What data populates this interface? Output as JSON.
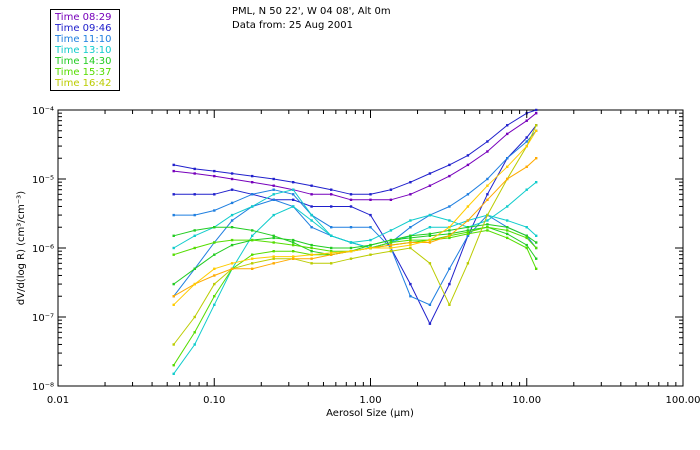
{
  "header": {
    "station": "PML, N 50 22', W 04 08', Alt 0m",
    "date_line": "Data from: 25 Aug 2001"
  },
  "legend": [
    {
      "label": "Time 08:29",
      "color": "#7700bb"
    },
    {
      "label": "Time 09:46",
      "color": "#2020cc"
    },
    {
      "label": "Time 11:10",
      "color": "#1f7fe0"
    },
    {
      "label": "Time 13:10",
      "color": "#11cccc"
    },
    {
      "label": "Time 14:30",
      "color": "#22cc22"
    },
    {
      "label": "Time 15:37",
      "color": "#55dd00"
    },
    {
      "label": "Time 16:42",
      "color": "#bbcc00"
    }
  ],
  "chart_data": {
    "type": "line",
    "title": "",
    "xlabel": "Aerosol Size (μm)",
    "ylabel": "dV/d(log R) (cm³/cm⁻³)",
    "xscale": "log",
    "yscale": "log",
    "xlim": [
      0.01,
      100
    ],
    "ylim": [
      1e-08,
      0.0001
    ],
    "xticks": [
      {
        "value": 0.01,
        "label": "0.01"
      },
      {
        "value": 0.1,
        "label": "0.10"
      },
      {
        "value": 1,
        "label": "1.00"
      },
      {
        "value": 10,
        "label": "10.00"
      },
      {
        "value": 100,
        "label": "100.00"
      }
    ],
    "yticks": [
      {
        "value": 1e-08,
        "label": "10⁻⁸"
      },
      {
        "value": 1e-07,
        "label": "10⁻⁷"
      },
      {
        "value": 1e-06,
        "label": "10⁻⁶"
      },
      {
        "value": 1e-05,
        "label": "10⁻⁵"
      },
      {
        "value": 0.0001,
        "label": "10⁻⁴"
      }
    ],
    "grid": false,
    "legend_position": "top-left, above plot",
    "x": [
      0.055,
      0.075,
      0.1,
      0.13,
      0.175,
      0.24,
      0.32,
      0.42,
      0.56,
      0.75,
      1.0,
      1.35,
      1.8,
      2.4,
      3.2,
      4.2,
      5.6,
      7.5,
      10.0,
      11.5
    ],
    "series": [
      {
        "color": "#7700bb",
        "values": [
          1.3e-05,
          1.2e-05,
          1.1e-05,
          1e-05,
          9e-06,
          8e-06,
          7e-06,
          6e-06,
          6e-06,
          5e-06,
          5e-06,
          5e-06,
          6e-06,
          8e-06,
          1.1e-05,
          1.6e-05,
          2.5e-05,
          4.5e-05,
          7e-05,
          9e-05
        ]
      },
      {
        "color": "#2020cc",
        "values": [
          1.6e-05,
          1.4e-05,
          1.3e-05,
          1.2e-05,
          1.1e-05,
          1e-05,
          9e-06,
          8e-06,
          7e-06,
          6e-06,
          6e-06,
          7e-06,
          9e-06,
          1.2e-05,
          1.6e-05,
          2.2e-05,
          3.5e-05,
          6e-05,
          9e-05,
          0.0001
        ]
      },
      {
        "color": "#2020cc",
        "values": [
          6e-06,
          6e-06,
          6e-06,
          7e-06,
          6e-06,
          5e-06,
          5e-06,
          4e-06,
          4e-06,
          4e-06,
          3e-06,
          1e-06,
          3e-07,
          8e-08,
          3e-07,
          1.5e-06,
          6e-06,
          2e-05,
          4e-05,
          6e-05
        ]
      },
      {
        "color": "#1f7fe0",
        "values": [
          2e-07,
          5e-07,
          1.2e-06,
          2.5e-06,
          4e-06,
          5e-06,
          4e-06,
          2e-06,
          1.5e-06,
          1.2e-06,
          1e-06,
          1.2e-06,
          2e-06,
          3e-06,
          4e-06,
          6e-06,
          1e-05,
          2e-05,
          3.5e-05,
          5e-05
        ]
      },
      {
        "color": "#1f7fe0",
        "values": [
          3e-06,
          3e-06,
          3.5e-06,
          4.5e-06,
          6e-06,
          7e-06,
          6e-06,
          3e-06,
          2e-06,
          2e-06,
          2e-06,
          1e-06,
          2e-07,
          1.5e-07,
          5e-07,
          1.5e-06,
          3e-06,
          2e-06,
          1.5e-06,
          1e-06
        ]
      },
      {
        "color": "#11cccc",
        "values": [
          1e-06,
          1.5e-06,
          2e-06,
          3e-06,
          4e-06,
          6e-06,
          7e-06,
          3e-06,
          1.5e-06,
          1.2e-06,
          1e-06,
          1.2e-06,
          1.5e-06,
          2e-06,
          2e-06,
          2.5e-06,
          3e-06,
          2.5e-06,
          2e-06,
          1.5e-06
        ]
      },
      {
        "color": "#11cccc",
        "values": [
          1.5e-08,
          4e-08,
          1.5e-07,
          5e-07,
          1.5e-06,
          3e-06,
          4e-06,
          2.5e-06,
          1.5e-06,
          1.2e-06,
          1.3e-06,
          1.8e-06,
          2.5e-06,
          3e-06,
          2.5e-06,
          2e-06,
          2.5e-06,
          4e-06,
          7e-06,
          9e-06
        ]
      },
      {
        "color": "#22cc22",
        "values": [
          1.5e-06,
          1.8e-06,
          2e-06,
          2e-06,
          1.8e-06,
          1.5e-06,
          1.2e-06,
          9e-07,
          8e-07,
          9e-07,
          1.1e-06,
          1.3e-06,
          1.5e-06,
          1.6e-06,
          1.8e-06,
          2e-06,
          2.2e-06,
          2e-06,
          1.5e-06,
          1.2e-06
        ]
      },
      {
        "color": "#22cc22",
        "values": [
          3e-07,
          5e-07,
          8e-07,
          1.1e-06,
          1.3e-06,
          1.4e-06,
          1.3e-06,
          1.1e-06,
          1e-06,
          1e-06,
          1.1e-06,
          1.3e-06,
          1.4e-06,
          1.5e-06,
          1.6e-06,
          1.8e-06,
          2e-06,
          1.6e-06,
          1.1e-06,
          7e-07
        ]
      },
      {
        "color": "#55dd00",
        "values": [
          2e-08,
          6e-08,
          2e-07,
          5e-07,
          8e-07,
          9e-07,
          9e-07,
          8e-07,
          8e-07,
          9e-07,
          1e-06,
          1.2e-06,
          1.3e-06,
          1.3e-06,
          1.4e-06,
          1.6e-06,
          1.8e-06,
          1.4e-06,
          1e-06,
          5e-07
        ]
      },
      {
        "color": "#55dd00",
        "values": [
          8e-07,
          1e-06,
          1.2e-06,
          1.3e-06,
          1.3e-06,
          1.2e-06,
          1.1e-06,
          1e-06,
          9e-07,
          9e-07,
          1e-06,
          1.1e-06,
          1.2e-06,
          1.3e-06,
          1.5e-06,
          1.7e-06,
          2e-06,
          1.8e-06,
          1.4e-06,
          1e-06
        ]
      },
      {
        "color": "#bbcc00",
        "values": [
          4e-08,
          1e-07,
          3e-07,
          5e-07,
          6e-07,
          7e-07,
          7e-07,
          6e-07,
          6e-07,
          7e-07,
          8e-07,
          9e-07,
          1e-06,
          6e-07,
          1.5e-07,
          6e-07,
          3e-06,
          1e-05,
          3e-05,
          6e-05
        ]
      },
      {
        "color": "#ffaa00",
        "values": [
          2e-07,
          3e-07,
          4e-07,
          5e-07,
          5e-07,
          6e-07,
          7e-07,
          7e-07,
          8e-07,
          9e-07,
          1e-06,
          1.1e-06,
          1.2e-06,
          1.2e-06,
          1.5e-06,
          2.5e-06,
          5e-06,
          1e-05,
          1.5e-05,
          2e-05
        ]
      },
      {
        "color": "#ffcc00",
        "values": [
          1.5e-07,
          3e-07,
          5e-07,
          6e-07,
          7e-07,
          7.5e-07,
          7.5e-07,
          8e-07,
          8.5e-07,
          9e-07,
          1e-06,
          1e-06,
          1.1e-06,
          1.3e-06,
          2e-06,
          4e-06,
          8e-06,
          1.5e-05,
          3e-05,
          5e-05
        ]
      }
    ]
  }
}
